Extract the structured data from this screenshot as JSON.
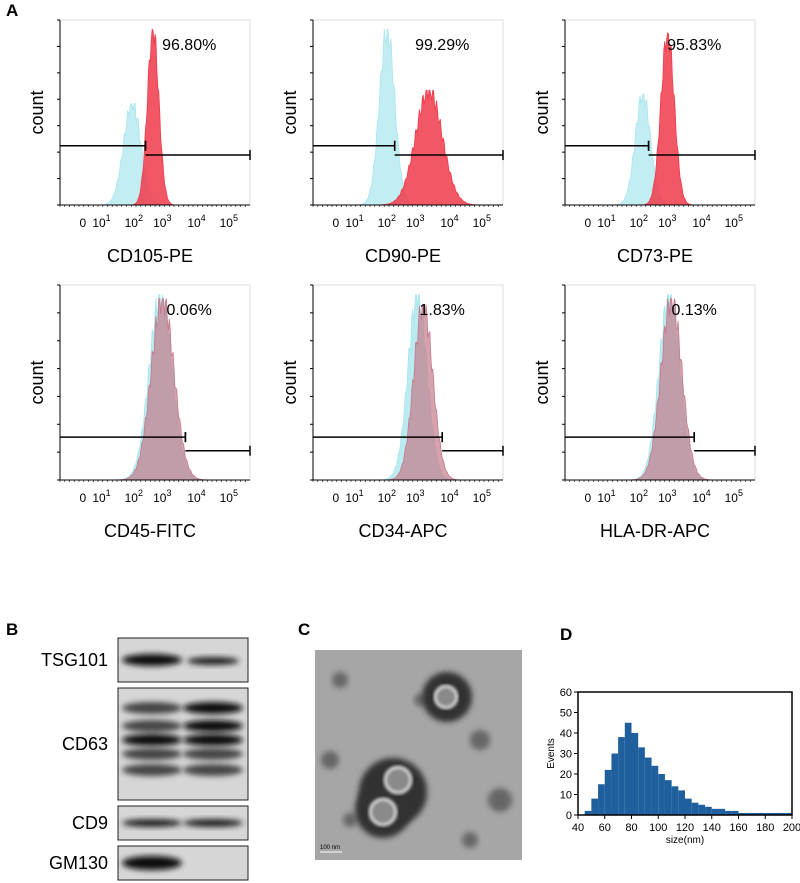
{
  "panel_labels": {
    "a": "A",
    "b": "B",
    "c": "C",
    "d": "D"
  },
  "flow_cytometry": {
    "y_label": "count",
    "x_ticks": [
      "0",
      {
        "base": "10",
        "exp": "1"
      },
      {
        "base": "10",
        "exp": "2"
      },
      {
        "base": "10",
        "exp": "3"
      },
      {
        "base": "10",
        "exp": "4"
      },
      {
        "base": "10",
        "exp": "5"
      }
    ],
    "panels": [
      {
        "marker": "CD105-PE",
        "percent": "96.80%"
      },
      {
        "marker": "CD90-PE",
        "percent": "99.29%"
      },
      {
        "marker": "CD73-PE",
        "percent": "95.83%"
      },
      {
        "marker": "CD45-FITC",
        "percent": "0.06%"
      },
      {
        "marker": "CD34-APC",
        "percent": "1.83%"
      },
      {
        "marker": "HLA-DR-APC",
        "percent": "0.13%"
      }
    ]
  },
  "western_blot": {
    "bands": [
      "TSG101",
      "CD63",
      "CD9",
      "GM130"
    ]
  },
  "tem": {
    "scale_bar": "100 nm"
  },
  "chart_data": {
    "type": "histogram",
    "x_label": "size(nm)",
    "y_label": "Events",
    "color": "#1f5f9e",
    "bins": [
      40,
      45,
      50,
      55,
      60,
      65,
      70,
      75,
      80,
      85,
      90,
      95,
      100,
      105,
      110,
      115,
      120,
      125,
      130,
      135,
      140,
      145,
      150,
      155,
      160,
      165,
      170,
      175,
      180,
      185,
      190,
      195,
      200
    ],
    "counts": [
      0,
      2,
      8,
      15,
      22,
      30,
      38,
      45,
      40,
      33,
      28,
      24,
      20,
      17,
      14,
      12,
      8,
      6,
      5,
      4,
      3,
      3,
      2,
      2,
      1,
      1,
      1,
      1,
      1,
      1,
      1,
      1
    ],
    "xlim": [
      40,
      200
    ],
    "ylim": [
      0,
      60
    ],
    "xticks": [
      40,
      60,
      80,
      100,
      120,
      140,
      160,
      180,
      200
    ],
    "yticks": [
      0,
      10,
      20,
      30,
      40,
      50,
      60
    ]
  }
}
